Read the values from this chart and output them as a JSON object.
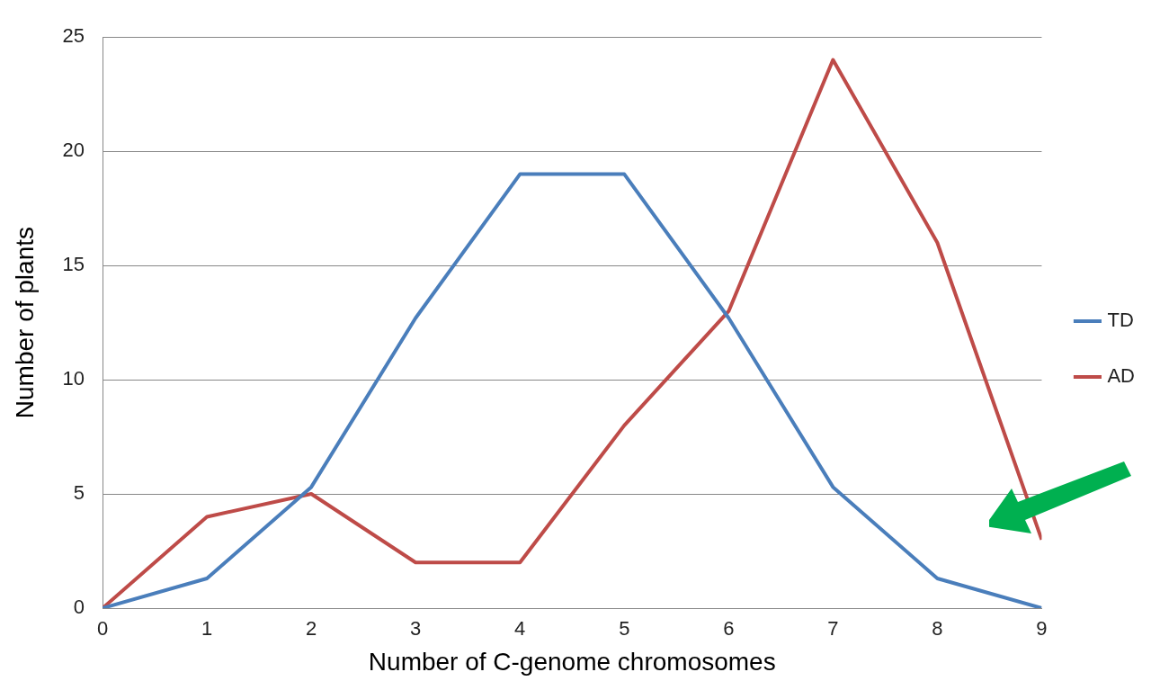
{
  "chart_data": {
    "type": "line",
    "xlabel": "Number of C-genome chromosomes",
    "ylabel": "Number of plants",
    "x": [
      0,
      1,
      2,
      3,
      4,
      5,
      6,
      7,
      8,
      9
    ],
    "series": [
      {
        "name": "TD",
        "color": "#4a7ebb",
        "values": [
          0,
          1.3,
          5.3,
          12.7,
          19,
          19,
          12.7,
          5.3,
          1.3,
          0
        ]
      },
      {
        "name": "AD",
        "color": "#be4b48",
        "values": [
          0,
          4,
          5,
          2,
          2,
          8,
          13,
          24,
          16,
          3
        ]
      }
    ],
    "xlim": [
      0,
      9
    ],
    "xticks": [
      0,
      1,
      2,
      3,
      4,
      5,
      6,
      7,
      8,
      9
    ],
    "ylim": [
      0,
      25
    ],
    "yticks": [
      0,
      5,
      10,
      15,
      20,
      25
    ],
    "grid": "y",
    "legend": "right",
    "marker": "none",
    "line_style": "solid"
  }
}
